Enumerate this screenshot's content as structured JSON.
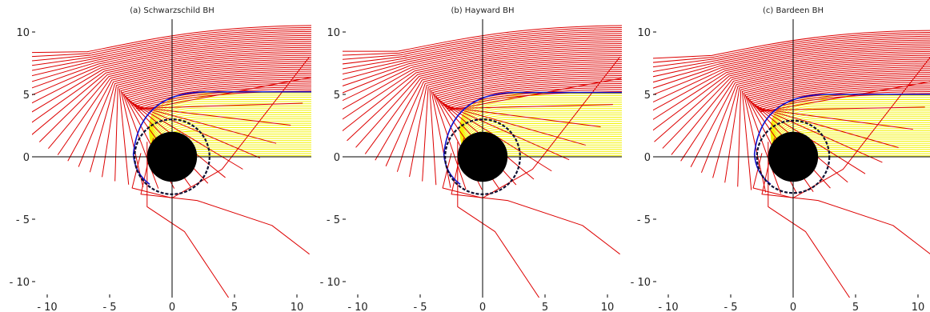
{
  "figure": {
    "panels": [
      {
        "title": "(a) Schwarzschild BH"
      },
      {
        "title": "(b) Hayward BH"
      },
      {
        "title": "(c) Bardeen BH"
      }
    ]
  },
  "colors": {
    "escaping_rays": "#dd0000",
    "captured_rays": "#f2f200",
    "critical_ray": "#1010cc",
    "shadow": "#000000",
    "photon_ring": "#111133",
    "axes": "#000000",
    "background": "#ffffff"
  },
  "chart_data": [
    {
      "type": "line",
      "title": "(a) Schwarzschild BH",
      "xlim": [
        -11,
        11
      ],
      "ylim": [
        -11,
        11
      ],
      "xticks": [
        -10,
        -5,
        0,
        5,
        10
      ],
      "yticks": [
        -10,
        -5,
        0,
        5,
        10
      ],
      "xtick_labels": [
        "- 10",
        "- 5",
        "0",
        "5",
        "10"
      ],
      "ytick_labels": [
        "- 10",
        "- 5",
        "0",
        "5",
        "10"
      ],
      "axes_through_origin": true,
      "grid": false,
      "shadow_radius": 2.0,
      "photon_ring_radius": 3.0,
      "critical_impact_parameter": 5.2,
      "captured_impact_parameters_range": [
        0,
        5.2
      ],
      "escaping_impact_parameters_range": [
        5.2,
        10.6
      ],
      "series": [
        {
          "label_hint": "critical",
          "impact_parameter": 5.2,
          "color_key": "critical_ray"
        }
      ]
    },
    {
      "type": "line",
      "title": "(b) Hayward BH",
      "xlim": [
        -11,
        11
      ],
      "ylim": [
        -11,
        11
      ],
      "xticks": [
        -10,
        -5,
        0,
        5,
        10
      ],
      "yticks": [
        -10,
        -5,
        0,
        5,
        10
      ],
      "xtick_labels": [
        "- 10",
        "- 5",
        "0",
        "5",
        "10"
      ],
      "ytick_labels": [
        "- 10",
        "- 5",
        "0",
        "5",
        "10"
      ],
      "axes_through_origin": true,
      "grid": false,
      "shadow_radius": 2.0,
      "photon_ring_radius": 3.0,
      "critical_impact_parameter": 5.15,
      "captured_impact_parameters_range": [
        0,
        5.15
      ],
      "escaping_impact_parameters_range": [
        5.15,
        10.6
      ]
    },
    {
      "type": "line",
      "title": "(c) Bardeen BH",
      "xlim": [
        -11,
        11
      ],
      "ylim": [
        -11,
        11
      ],
      "xticks": [
        -10,
        -5,
        0,
        5,
        10
      ],
      "yticks": [
        -10,
        -5,
        0,
        5,
        10
      ],
      "xtick_labels": [
        "- 10",
        "- 5",
        "0",
        "5",
        "10"
      ],
      "ytick_labels": [
        "- 10",
        "- 5",
        "0",
        "5",
        "10"
      ],
      "axes_through_origin": true,
      "grid": false,
      "shadow_radius": 2.0,
      "photon_ring_radius": 2.9,
      "critical_impact_parameter": 5.0,
      "captured_impact_parameters_range": [
        0,
        5.0
      ],
      "escaping_impact_parameters_range": [
        5.0,
        10.2
      ]
    }
  ]
}
